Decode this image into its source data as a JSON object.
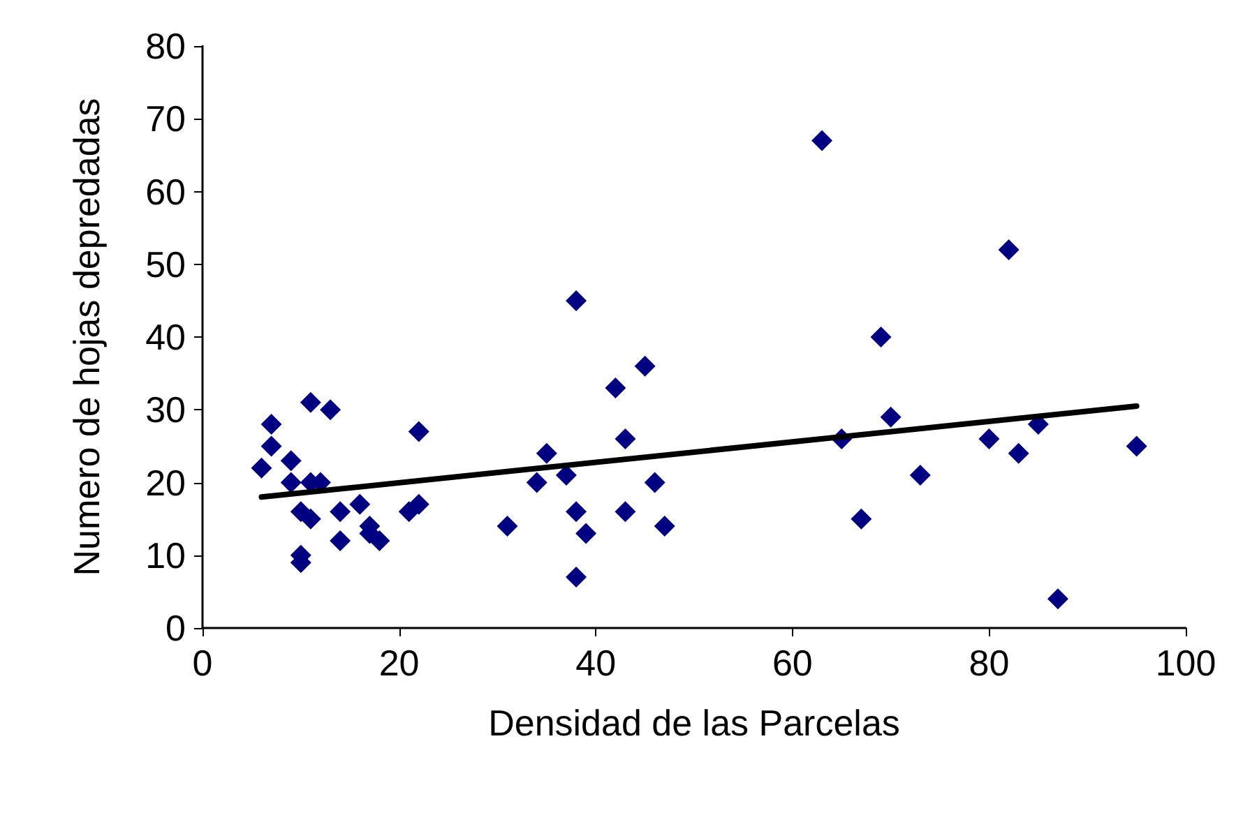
{
  "chart_data": {
    "type": "scatter",
    "xlabel": "Densidad de las Parcelas",
    "ylabel": "Numero de hojas depredadas",
    "marker": "diamond",
    "grid": false,
    "xlim": [
      0,
      100
    ],
    "xticks": [
      0,
      20,
      40,
      60,
      80,
      100
    ],
    "ylim": [
      0,
      80
    ],
    "yticks": [
      0,
      10,
      20,
      30,
      40,
      50,
      60,
      70,
      80
    ],
    "series": [
      {
        "color": "#000080",
        "x": [
          6,
          7,
          7,
          9,
          9,
          10,
          10,
          10,
          11,
          11,
          11,
          12,
          13,
          14,
          14,
          16,
          17,
          17,
          18,
          21,
          22,
          22,
          31,
          34,
          35,
          37,
          38,
          38,
          38,
          39,
          42,
          43,
          43,
          45,
          46,
          47,
          63,
          65,
          67,
          69,
          70,
          73,
          80,
          82,
          83,
          85,
          87,
          95
        ],
        "values": [
          22,
          25,
          28,
          23,
          20,
          16,
          10,
          9,
          31,
          20,
          15,
          20,
          30,
          16,
          12,
          17,
          14,
          13,
          12,
          16,
          17,
          27,
          14,
          20,
          24,
          21,
          45,
          16,
          7,
          13,
          33,
          26,
          16,
          36,
          20,
          14,
          67,
          26,
          15,
          40,
          29,
          21,
          26,
          52,
          24,
          28,
          4,
          25
        ]
      },
      {
        "type": "line",
        "color": "#000000",
        "marker": "none",
        "x": [
          6,
          95
        ],
        "values": [
          18,
          30.5
        ]
      }
    ]
  }
}
